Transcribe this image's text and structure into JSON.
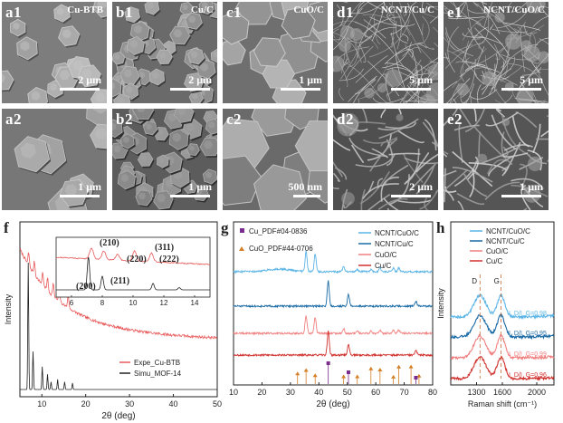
{
  "sem_panels": [
    {
      "id": "a1",
      "label": "a1",
      "title": "Cu-BTB",
      "scale": "2 μm",
      "tone": "#7d7d7d",
      "style": "polyhedra_sparse"
    },
    {
      "id": "b1",
      "label": "b1",
      "title": "Cu/C",
      "scale": "2 μm",
      "tone": "#6a6a6a",
      "style": "polyhedra_dense"
    },
    {
      "id": "c1",
      "label": "c1",
      "title": "CuO/C",
      "scale": "1 μm",
      "tone": "#6f6f6f",
      "style": "blocks"
    },
    {
      "id": "d1",
      "label": "d1",
      "title": "NCNT/Cu/C",
      "scale": "5 μm",
      "tone": "#5a5a5a",
      "style": "tubes"
    },
    {
      "id": "e1",
      "label": "e1",
      "title": "NCNT/CuO/C",
      "scale": "5 μm",
      "tone": "#5e5e5e",
      "style": "tubes"
    },
    {
      "id": "a2",
      "label": "a2",
      "title": "",
      "scale": "1 μm",
      "tone": "#777777",
      "style": "polyhedra_large"
    },
    {
      "id": "b2",
      "label": "b2",
      "title": "",
      "scale": "1 μm",
      "tone": "#5c5c5c",
      "style": "polyhedra_dense"
    },
    {
      "id": "c2",
      "label": "c2",
      "title": "",
      "scale": "500 nm",
      "tone": "#6a6a6a",
      "style": "blocks_large"
    },
    {
      "id": "d2",
      "label": "d2",
      "title": "",
      "scale": "2 μm",
      "tone": "#4f4f4f",
      "style": "tubes_close"
    },
    {
      "id": "e2",
      "label": "e2",
      "title": "",
      "scale": "1 μm",
      "tone": "#555555",
      "style": "tubes_close"
    }
  ],
  "colors": {
    "red": "#e8595a",
    "black": "#222222",
    "lightblue": "#5ab4e6",
    "darkblue": "#1a6aa5",
    "lightred": "#f08080",
    "darkred": "#d0312d",
    "orange": "#d47f26",
    "purple": "#7a2c8f"
  },
  "chart_data": [
    {
      "type": "line",
      "panel_label": "f",
      "xlabel": "2θ (deg)",
      "ylabel": "Intensity",
      "xlim": [
        5,
        50
      ],
      "xticks": [
        10,
        20,
        30,
        40,
        50
      ],
      "series": [
        {
          "name": "Expe_Cu-BTB",
          "color": "#e8595a"
        },
        {
          "name": "Simu_MOF-14",
          "color": "#222222"
        }
      ],
      "inset": {
        "xlim": [
          5,
          15
        ],
        "xticks": [
          6,
          8,
          10,
          12,
          14
        ],
        "peak_labels": [
          "(200)",
          "(211)",
          "(210)",
          "(220)",
          "(311)",
          "(222)"
        ]
      }
    },
    {
      "type": "line",
      "panel_label": "g",
      "xlabel": "2θ (deg)",
      "xlim": [
        10,
        80
      ],
      "xticks": [
        10,
        20,
        30,
        40,
        50,
        60,
        70,
        80
      ],
      "reference_legend": [
        "Cu_PDF#04-0836",
        "CuO_PDF#44-0706"
      ],
      "series": [
        {
          "name": "NCNT/CuO/C",
          "color": "#5ab4e6"
        },
        {
          "name": "NCNT/Cu/C",
          "color": "#1a6aa5"
        },
        {
          "name": "CuO/C",
          "color": "#f08080"
        },
        {
          "name": "Cu/C",
          "color": "#d0312d"
        }
      ],
      "cu_refs": [
        43.3,
        50.4,
        74.1
      ],
      "cuo_refs": [
        32.5,
        35.5,
        38.7,
        48.7,
        53.5,
        58.3,
        61.5,
        66.2,
        68.1,
        72.4,
        75.2
      ]
    },
    {
      "type": "line",
      "panel_label": "h",
      "xlabel": "Raman shift (cm⁻¹)",
      "ylabel": "Intensity",
      "xlim": [
        1000,
        2200
      ],
      "xticks": [
        1300,
        1600,
        2000
      ],
      "peak_names": [
        "D",
        "G"
      ],
      "series": [
        {
          "name": "NCNT/CuO/C",
          "color": "#5ab4e6",
          "ratio": "I_D/I_G=0.98"
        },
        {
          "name": "NCNT/Cu/C",
          "color": "#1a6aa5",
          "ratio": "I_D/I_G=0.95"
        },
        {
          "name": "CuO/C",
          "color": "#f08080",
          "ratio": "I_D/I_G=0.99"
        },
        {
          "name": "Cu/C",
          "color": "#d0312d",
          "ratio": "I_D/I_G=0.96"
        }
      ]
    }
  ]
}
